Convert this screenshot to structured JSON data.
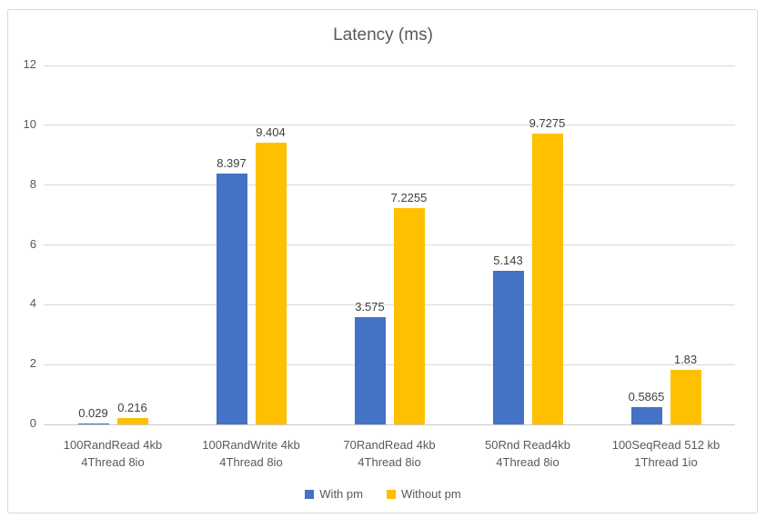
{
  "chart_data": {
    "type": "bar",
    "title": "Latency (ms)",
    "categories": [
      "100RandRead 4kb\n4Thread 8io",
      "100RandWrite 4kb\n4Thread 8io",
      "70RandRead 4kb\n4Thread 8io",
      "50Rnd Read4kb\n4Thread 8io",
      "100SeqRead 512 kb\n1Thread 1io"
    ],
    "series": [
      {
        "name": "With pm",
        "color": "#4472C4",
        "values": [
          0.029,
          8.397,
          3.575,
          5.143,
          0.5865
        ],
        "labels": [
          "0.029",
          "8.397",
          "3.575",
          "5.143",
          "0.5865"
        ]
      },
      {
        "name": "Without pm",
        "color": "#FFC000",
        "values": [
          0.216,
          9.404,
          7.2255,
          9.7275,
          1.83
        ],
        "labels": [
          "0.216",
          "9.404",
          "7.2255",
          "9.7275",
          "1.83"
        ]
      }
    ],
    "xlabel": "",
    "ylabel": "",
    "ylim": [
      0,
      12
    ],
    "yticks": [
      0,
      2,
      4,
      6,
      8,
      10,
      12
    ],
    "grid": true,
    "legend_position": "bottom",
    "colors": {
      "grid": "#D9D9D9",
      "axis_line": "#C9C9C9",
      "axis_text": "#595959",
      "data_label": "#404040",
      "chart_border": "#D9D9D9",
      "background": "#FFFFFF"
    }
  }
}
